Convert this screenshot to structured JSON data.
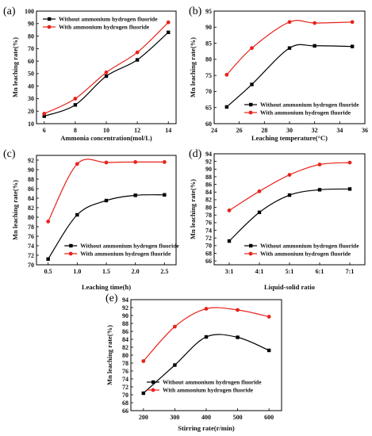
{
  "colors": {
    "without": "#000000",
    "with": "#e8231b"
  },
  "chart_data": [
    {
      "panel": "(a)",
      "type": "line",
      "xlabel": "Ammonia concentration(mol/L)",
      "ylabel": "Mn leaching rate(%)",
      "xlim": [
        5.5,
        14.5
      ],
      "ylim": [
        10,
        100
      ],
      "xticks": [
        6,
        8,
        10,
        12,
        14
      ],
      "yticks": [
        10,
        20,
        30,
        40,
        50,
        60,
        70,
        80,
        90,
        100
      ],
      "legend_position": "top-left",
      "series": [
        {
          "name": "Without ammonium hydrogen fluoride",
          "x": [
            6,
            8,
            10,
            12,
            14
          ],
          "y": [
            16,
            25,
            48,
            61,
            83
          ]
        },
        {
          "name": "With ammonium hydrogen fluoride",
          "x": [
            6,
            8,
            10,
            12,
            14
          ],
          "y": [
            18,
            30,
            51,
            67,
            91
          ]
        }
      ]
    },
    {
      "panel": "(b)",
      "type": "line",
      "xlabel": "Leaching temperature(°C)",
      "ylabel": "Mn leaching rate(%)",
      "xlim": [
        24,
        36
      ],
      "ylim": [
        60,
        95
      ],
      "xticks": [
        24,
        26,
        28,
        30,
        32,
        34,
        36
      ],
      "yticks": [
        60,
        65,
        70,
        75,
        80,
        85,
        90,
        95
      ],
      "legend_position": "bottom-right",
      "series": [
        {
          "name": "Without ammonium hydrogen fluoride",
          "x": [
            25,
            27,
            30,
            32,
            35
          ],
          "y": [
            65.2,
            72.2,
            83.5,
            84.2,
            84.0
          ]
        },
        {
          "name": "With ammonium hydrogen fluoride",
          "x": [
            25,
            27,
            30,
            32,
            35
          ],
          "y": [
            75.2,
            83.5,
            91.6,
            91.3,
            91.6
          ]
        }
      ]
    },
    {
      "panel": "(c)",
      "type": "line",
      "xlabel": "Leaching time(h)",
      "ylabel": "Mn leaching rate(%)",
      "xlim": [
        0.3,
        2.7
      ],
      "ylim": [
        70,
        93
      ],
      "xticks": [
        0.5,
        1.0,
        1.5,
        2.0,
        2.5
      ],
      "yticks": [
        70,
        72,
        74,
        76,
        78,
        80,
        82,
        84,
        86,
        88,
        90,
        92
      ],
      "legend_position": "bottom-right",
      "series": [
        {
          "name": "Without ammonium hydrogen fluoride",
          "x": [
            0.5,
            1.0,
            1.5,
            2.0,
            2.5
          ],
          "y": [
            71.2,
            80.5,
            83.5,
            84.6,
            84.7
          ]
        },
        {
          "name": "With ammonium hydrogen fluoride",
          "x": [
            0.5,
            1.0,
            1.5,
            2.0,
            2.5
          ],
          "y": [
            79.1,
            91.2,
            91.5,
            91.6,
            91.6
          ]
        }
      ]
    },
    {
      "panel": "(d)",
      "type": "line",
      "xlabel": "Liquid-solid ratio",
      "ylabel": "Mn leaching rate(%)",
      "categories": [
        "3:1",
        "4:1",
        "5:1",
        "6:1",
        "7:1"
      ],
      "ylim": [
        65,
        94
      ],
      "yticks": [
        66,
        68,
        70,
        72,
        74,
        76,
        78,
        80,
        82,
        84,
        86,
        88,
        90,
        92,
        94
      ],
      "legend_position": "bottom-right",
      "series": [
        {
          "name": "Without ammonium hydrogen fluoride",
          "values": [
            71.2,
            78.7,
            83.2,
            84.6,
            84.8
          ]
        },
        {
          "name": "With ammonium hydrogen fluoride",
          "values": [
            79.2,
            84.2,
            88.5,
            91.2,
            91.7
          ]
        }
      ]
    },
    {
      "panel": "(e)",
      "type": "line",
      "xlabel": "Stirring rate(r/min)",
      "ylabel": "Mn leaching rate(%)",
      "xlim": [
        160,
        640
      ],
      "ylim": [
        66,
        94
      ],
      "xticks": [
        200,
        300,
        400,
        500,
        600
      ],
      "yticks": [
        66,
        68,
        70,
        72,
        74,
        76,
        78,
        80,
        82,
        84,
        86,
        88,
        90,
        92,
        94
      ],
      "legend_position": "bottom-right",
      "series": [
        {
          "name": "Without ammonium hydrogen fluoride",
          "x": [
            200,
            300,
            400,
            500,
            600
          ],
          "y": [
            70.4,
            77.5,
            84.6,
            84.5,
            81.2
          ]
        },
        {
          "name": "With ammonium hydrogen fluoride",
          "x": [
            200,
            300,
            400,
            500,
            600
          ],
          "y": [
            78.5,
            87.2,
            91.7,
            91.4,
            89.7
          ]
        }
      ]
    }
  ]
}
